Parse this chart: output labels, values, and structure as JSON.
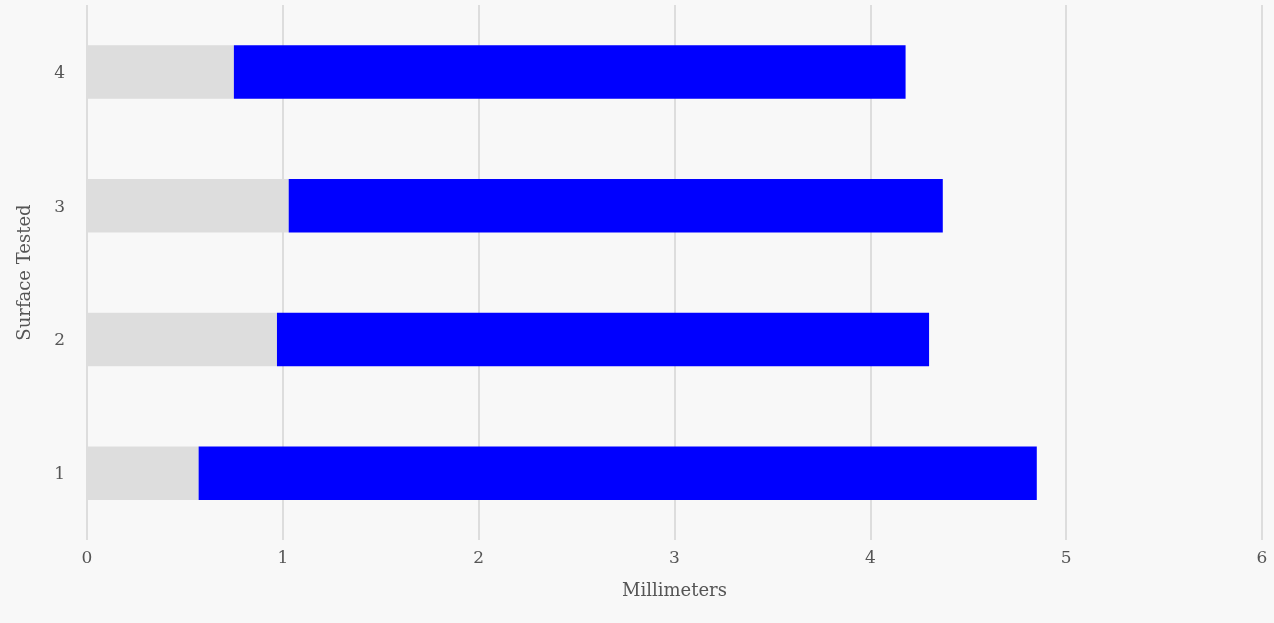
{
  "chart_data": {
    "type": "bar",
    "orientation": "horizontal",
    "stacked": true,
    "xlabel": "Millimeters",
    "ylabel": "Surface Tested",
    "categories": [
      "4",
      "3",
      "2",
      "1"
    ],
    "series": [
      {
        "color": "#dddddd",
        "values": [
          0.75,
          1.03,
          0.97,
          0.57
        ]
      },
      {
        "color": "#0000ff",
        "values": [
          3.43,
          3.34,
          3.33,
          4.28
        ]
      }
    ],
    "xlim": [
      0,
      6
    ],
    "xticks": [
      0,
      1,
      2,
      3,
      4,
      5,
      6
    ],
    "grid": "x"
  }
}
